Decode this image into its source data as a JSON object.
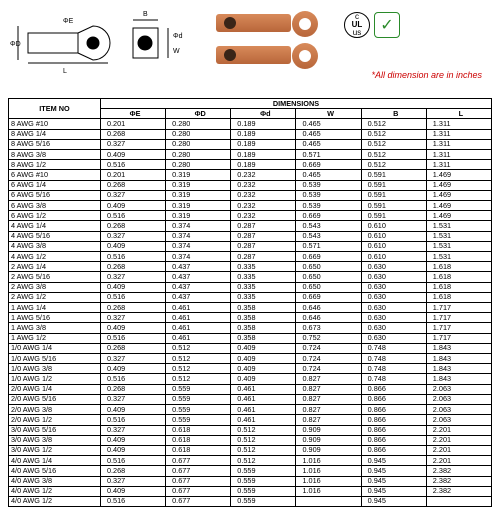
{
  "note": "*All dimension are in inches",
  "badges": {
    "ul_top": "c",
    "ul_mid": "UL",
    "ul_bot": "us",
    "check": "✓"
  },
  "diagram_labels": {
    "phiE": "ΦE",
    "phiD": "ΦD",
    "L": "L",
    "B": "B",
    "phid": "Φd",
    "W": "W"
  },
  "table": {
    "header_main": "DIMENSIONS",
    "header_item": "ITEM NO",
    "columns": [
      "ΦE",
      "ΦD",
      "Φd",
      "W",
      "B",
      "L"
    ],
    "rows": [
      [
        "8 AWG #10",
        "0.201",
        "0.280",
        "0.189",
        "0.465",
        "0.512",
        "1.311"
      ],
      [
        "8 AWG 1/4",
        "0.268",
        "0.280",
        "0.189",
        "0.465",
        "0.512",
        "1.311"
      ],
      [
        "8 AWG 5/16",
        "0.327",
        "0.280",
        "0.189",
        "0.465",
        "0.512",
        "1.311"
      ],
      [
        "8 AWG 3/8",
        "0.409",
        "0.280",
        "0.189",
        "0.571",
        "0.512",
        "1.311"
      ],
      [
        "8 AWG 1/2",
        "0.516",
        "0.280",
        "0.189",
        "0.669",
        "0.512",
        "1.311"
      ],
      [
        "6 AWG #10",
        "0.201",
        "0.319",
        "0.232",
        "0.465",
        "0.591",
        "1.469"
      ],
      [
        "6 AWG 1/4",
        "0.268",
        "0.319",
        "0.232",
        "0.539",
        "0.591",
        "1.469"
      ],
      [
        "6 AWG 5/16",
        "0.327",
        "0.319",
        "0.232",
        "0.539",
        "0.591",
        "1.469"
      ],
      [
        "6 AWG 3/8",
        "0.409",
        "0.319",
        "0.232",
        "0.539",
        "0.591",
        "1.469"
      ],
      [
        "6 AWG 1/2",
        "0.516",
        "0.319",
        "0.232",
        "0.669",
        "0.591",
        "1.469"
      ],
      [
        "4 AWG 1/4",
        "0.268",
        "0.374",
        "0.287",
        "0.543",
        "0.610",
        "1.531"
      ],
      [
        "4 AWG 5/16",
        "0.327",
        "0.374",
        "0.287",
        "0.543",
        "0.610",
        "1.531"
      ],
      [
        "4 AWG 3/8",
        "0.409",
        "0.374",
        "0.287",
        "0.571",
        "0.610",
        "1.531"
      ],
      [
        "4 AWG 1/2",
        "0.516",
        "0.374",
        "0.287",
        "0.669",
        "0.610",
        "1.531"
      ],
      [
        "2 AWG 1/4",
        "0.268",
        "0.437",
        "0.335",
        "0.650",
        "0.630",
        "1.618"
      ],
      [
        "2 AWG 5/16",
        "0.327",
        "0.437",
        "0.335",
        "0.650",
        "0.630",
        "1.618"
      ],
      [
        "2 AWG 3/8",
        "0.409",
        "0.437",
        "0.335",
        "0.650",
        "0.630",
        "1.618"
      ],
      [
        "2 AWG 1/2",
        "0.516",
        "0.437",
        "0.335",
        "0.669",
        "0.630",
        "1.618"
      ],
      [
        "1 AWG 1/4",
        "0.268",
        "0.461",
        "0.358",
        "0.646",
        "0.630",
        "1.717"
      ],
      [
        "1 AWG 5/16",
        "0.327",
        "0.461",
        "0.358",
        "0.646",
        "0.630",
        "1.717"
      ],
      [
        "1 AWG 3/8",
        "0.409",
        "0.461",
        "0.358",
        "0.673",
        "0.630",
        "1.717"
      ],
      [
        "1 AWG 1/2",
        "0.516",
        "0.461",
        "0.358",
        "0.752",
        "0.630",
        "1.717"
      ],
      [
        "1/0 AWG 1/4",
        "0.268",
        "0.512",
        "0.409",
        "0.724",
        "0.748",
        "1.843"
      ],
      [
        "1/0 AWG 5/16",
        "0.327",
        "0.512",
        "0.409",
        "0.724",
        "0.748",
        "1.843"
      ],
      [
        "1/0 AWG 3/8",
        "0.409",
        "0.512",
        "0.409",
        "0.724",
        "0.748",
        "1.843"
      ],
      [
        "1/0 AWG 1/2",
        "0.516",
        "0.512",
        "0.409",
        "0.827",
        "0.748",
        "1.843"
      ],
      [
        "2/0 AWG 1/4",
        "0.268",
        "0.559",
        "0.461",
        "0.827",
        "0.866",
        "2.063"
      ],
      [
        "2/0 AWG 5/16",
        "0.327",
        "0.559",
        "0.461",
        "0.827",
        "0.866",
        "2.063"
      ],
      [
        "2/0 AWG 3/8",
        "0.409",
        "0.559",
        "0.461",
        "0.827",
        "0.866",
        "2.063"
      ],
      [
        "2/0 AWG 1/2",
        "0.516",
        "0.559",
        "0.461",
        "0.827",
        "0.866",
        "2.063"
      ],
      [
        "3/0 AWG 5/16",
        "0.327",
        "0.618",
        "0.512",
        "0.909",
        "0.866",
        "2.201"
      ],
      [
        "3/0 AWG 3/8",
        "0.409",
        "0.618",
        "0.512",
        "0.909",
        "0.866",
        "2.201"
      ],
      [
        "3/0 AWG 1/2",
        "0.409",
        "0.618",
        "0.512",
        "0.909",
        "0.866",
        "2.201"
      ],
      [
        "4/0 AWG 1/4",
        "0.516",
        "0.677",
        "0.512",
        "1.016",
        "0.945",
        "2.201"
      ],
      [
        "4/0 AWG 5/16",
        "0.268",
        "0.677",
        "0.559",
        "1.016",
        "0.945",
        "2.382"
      ],
      [
        "4/0 AWG 3/8",
        "0.327",
        "0.677",
        "0.559",
        "1.016",
        "0.945",
        "2.382"
      ],
      [
        "4/0 AWG 1/2",
        "0.409",
        "0.677",
        "0.559",
        "1.016",
        "0.945",
        "2.382"
      ],
      [
        "4/0 AWG 1/2",
        "0.516",
        "0.677",
        "0.559",
        "",
        "0.945",
        ""
      ]
    ]
  }
}
